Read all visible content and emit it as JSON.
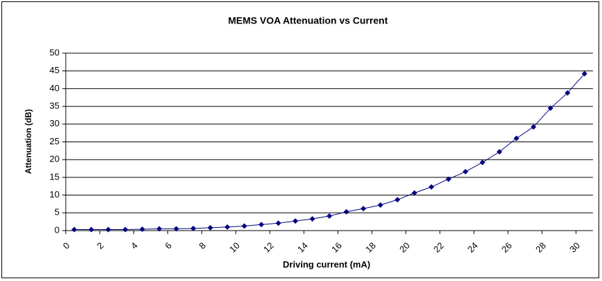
{
  "chart_data": {
    "type": "line",
    "title": "MEMS VOA Attenuation vs Current",
    "xlabel": "Driving current (mA)",
    "ylabel": "Attenuation (dB)",
    "x": [
      0.5,
      1.5,
      2.5,
      3.5,
      4.5,
      5.5,
      6.5,
      7.5,
      8.5,
      9.5,
      10.5,
      11.5,
      12.5,
      13.5,
      14.5,
      15.5,
      16.5,
      17.5,
      18.5,
      19.5,
      20.5,
      21.5,
      22.5,
      23.5,
      24.5,
      25.5,
      26.5,
      27.5,
      28.5,
      29.5,
      30.5
    ],
    "series": [
      {
        "name": "Attenuation",
        "color": "#000080",
        "values": [
          0.3,
          0.3,
          0.3,
          0.3,
          0.4,
          0.5,
          0.5,
          0.6,
          0.8,
          1.0,
          1.3,
          1.7,
          2.1,
          2.7,
          3.3,
          4.1,
          5.3,
          6.2,
          7.2,
          8.7,
          10.6,
          12.3,
          14.5,
          16.6,
          19.2,
          22.2,
          26,
          29.2,
          34.5,
          38.8,
          44.2
        ]
      }
    ],
    "xlim": [
      0,
      31
    ],
    "xticks": [
      0,
      2,
      4,
      6,
      8,
      10,
      12,
      14,
      16,
      18,
      20,
      22,
      24,
      26,
      28,
      30
    ],
    "ylim": [
      0,
      50
    ],
    "yticks": [
      0,
      5,
      10,
      15,
      20,
      25,
      30,
      35,
      40,
      45,
      50
    ],
    "grid": true
  }
}
